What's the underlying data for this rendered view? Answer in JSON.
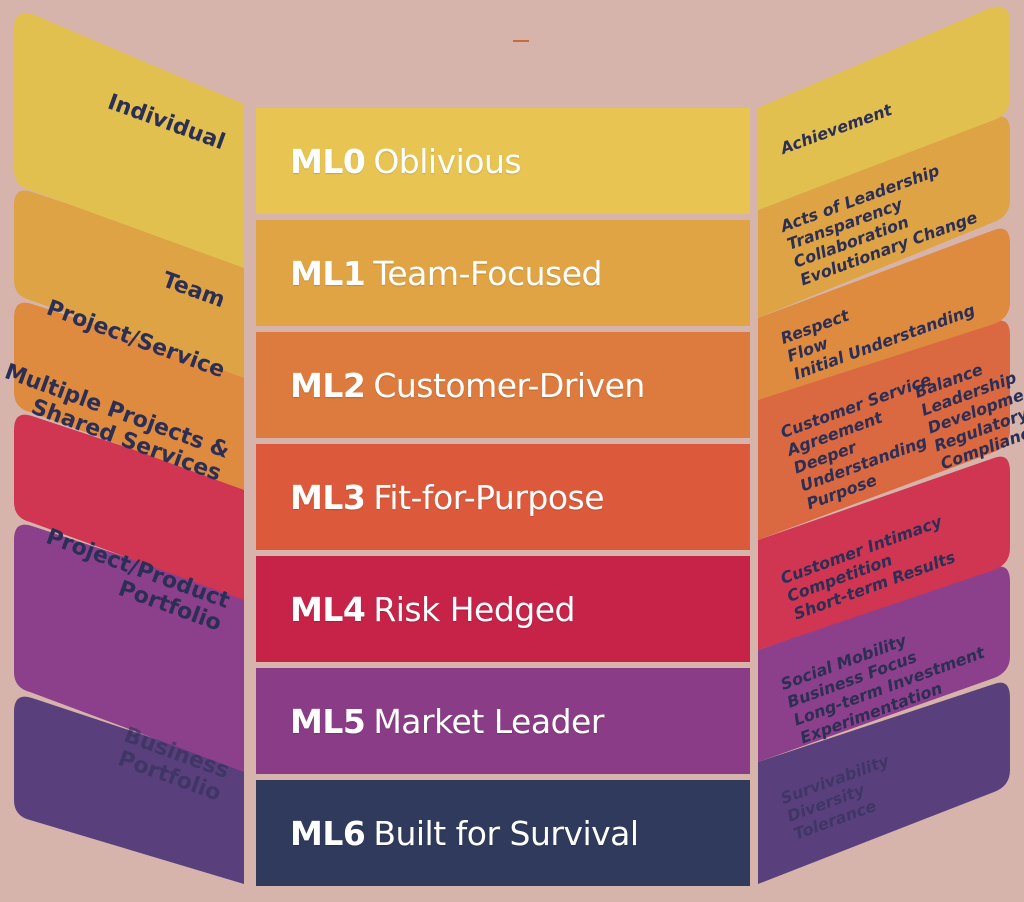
{
  "levels": [
    {
      "code": "ML0",
      "name": "Oblivious",
      "color": "#e8c452",
      "wing": "#e2c04f",
      "left": [
        "Individual"
      ],
      "right": [
        "Achievement"
      ]
    },
    {
      "code": "ML1",
      "name": "Team-Focused",
      "color": "#e0a444",
      "wing": "#dea345",
      "left": [
        "Team"
      ],
      "right": [
        "Acts of Leadership",
        "Transparency",
        "Collaboration",
        "Evolutionary Change"
      ]
    },
    {
      "code": "ML2",
      "name": "Customer-Driven",
      "color": "#dd7a3d",
      "wing": "#de8a3f",
      "left": [
        "Project/Service"
      ],
      "right": [
        "Respect",
        "Flow",
        "Initial Understanding"
      ]
    },
    {
      "code": "ML3",
      "name": "Fit-for-Purpose",
      "color": "#dc5a3b",
      "wing": "#da6840",
      "left": [
        "Multiple Projects &",
        "Shared Services"
      ],
      "right": [
        "Customer Service",
        "Agreement",
        "Deeper",
        "Understanding",
        "Purpose"
      ],
      "right2": [
        "Balance",
        "Leadership",
        "Development",
        "Regulatory",
        "Compliance"
      ]
    },
    {
      "code": "ML4",
      "name": "Risk Hedged",
      "color": "#c72247",
      "wing": "#d03552",
      "left": [],
      "right": [
        "Customer Intimacy",
        "Competition",
        "Short-term Results"
      ]
    },
    {
      "code": "ML5",
      "name": "Market Leader",
      "color": "#8a3c86",
      "wing": "#8c3f8a",
      "left": [
        "Project/Product",
        "Portfolio"
      ],
      "right": [
        "Social Mobility",
        "Business Focus",
        "Long-term Investment",
        "Experimentation"
      ]
    },
    {
      "code": "ML6",
      "name": "Built for Survival",
      "color": "#2f3a5c",
      "wing": "#5a3f7d",
      "left": [
        "Business",
        "Portfolio"
      ],
      "right": [
        "Survivability",
        "Diversity",
        "Tolerance"
      ]
    }
  ],
  "colors": {
    "background": "#d6b4ab",
    "left_text": "#2b2f55",
    "right_text": "#2b2f55"
  }
}
